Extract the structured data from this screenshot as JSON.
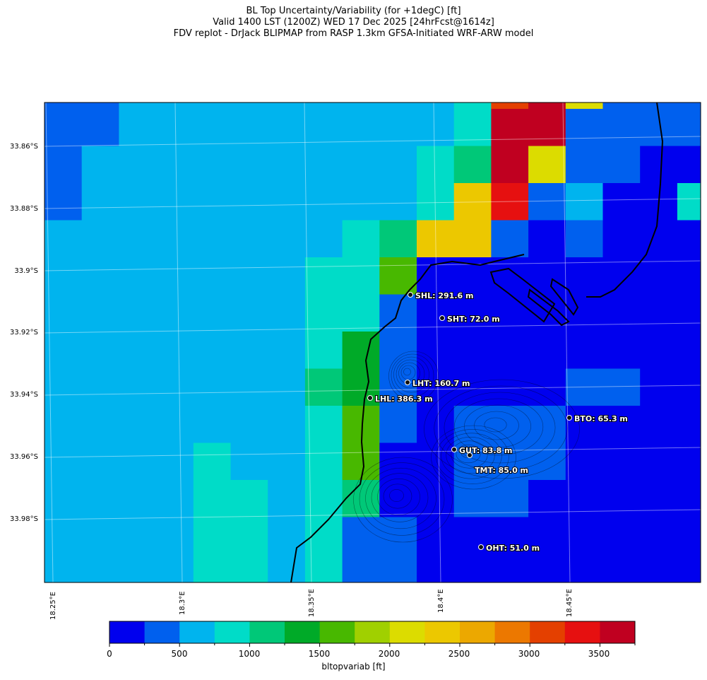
{
  "title": {
    "line1": "BL Top Uncertainty/Variability (for +1degC) [ft]",
    "line2": "Valid 1400 LST (1200Z) WED 17 Dec 2025 [24hrFcst@1614z]",
    "line3": "FDV replot - DrJack BLIPMAP from RASP 1.3km GFSA-Initiated WRF-ARW model"
  },
  "axes": {
    "lat_labels": [
      "33.86°S",
      "33.88°S",
      "33.9°S",
      "33.92°S",
      "33.94°S",
      "33.96°S",
      "33.98°S"
    ],
    "lon_labels": [
      "18.25°E",
      "18.3°E",
      "18.35°E",
      "18.4°E",
      "18.45°E"
    ]
  },
  "colorbar": {
    "label": "bltopvariab [ft]",
    "ticks": [
      "0",
      "500",
      "1000",
      "1500",
      "2000",
      "2500",
      "3000",
      "3500"
    ],
    "colors": [
      "#0000ee",
      "#0060ee",
      "#00b4ee",
      "#00dcc8",
      "#00c878",
      "#00aa28",
      "#48b800",
      "#a0d000",
      "#dcdc00",
      "#ecc800",
      "#eca800",
      "#ec7800",
      "#e44000",
      "#e61010",
      "#c00020"
    ]
  },
  "grid": {
    "rows": [
      "111111111333466ee81111111111",
      "22223333333343ee88122111111111",
      "222333333334333343e9e11222221111",
      "223333333334343339e922111113",
      "2333333333334433998888",
      "23333333333343433221211111111",
      "333333333334433531111111111111",
      "33333333344444543111111111111",
      "333333333344444333011111111111",
      "333333333434333311111111111111",
      "3333333443333320011111111111",
      "333333334433332111111111111111",
      "33333333333333211111112222111",
      "33333333333333211111111111111",
      "33333333333333211111111111111"
    ]
  },
  "stations": [
    {
      "id": "SHL",
      "label": "SHL: 291.6 m"
    },
    {
      "id": "SHT",
      "label": "SHT: 72.0 m"
    },
    {
      "id": "LHT",
      "label": "LHT: 160.7 m"
    },
    {
      "id": "LHL",
      "label": "LHL: 386.3 m"
    },
    {
      "id": "BTO",
      "label": "BTO: 65.3 m"
    },
    {
      "id": "GUT",
      "label": "GUT: 83.8 m"
    },
    {
      "id": "TMT",
      "label": "TMT: 85.0 m"
    },
    {
      "id": "OHT",
      "label": "OHT: 51.0 m"
    }
  ]
}
